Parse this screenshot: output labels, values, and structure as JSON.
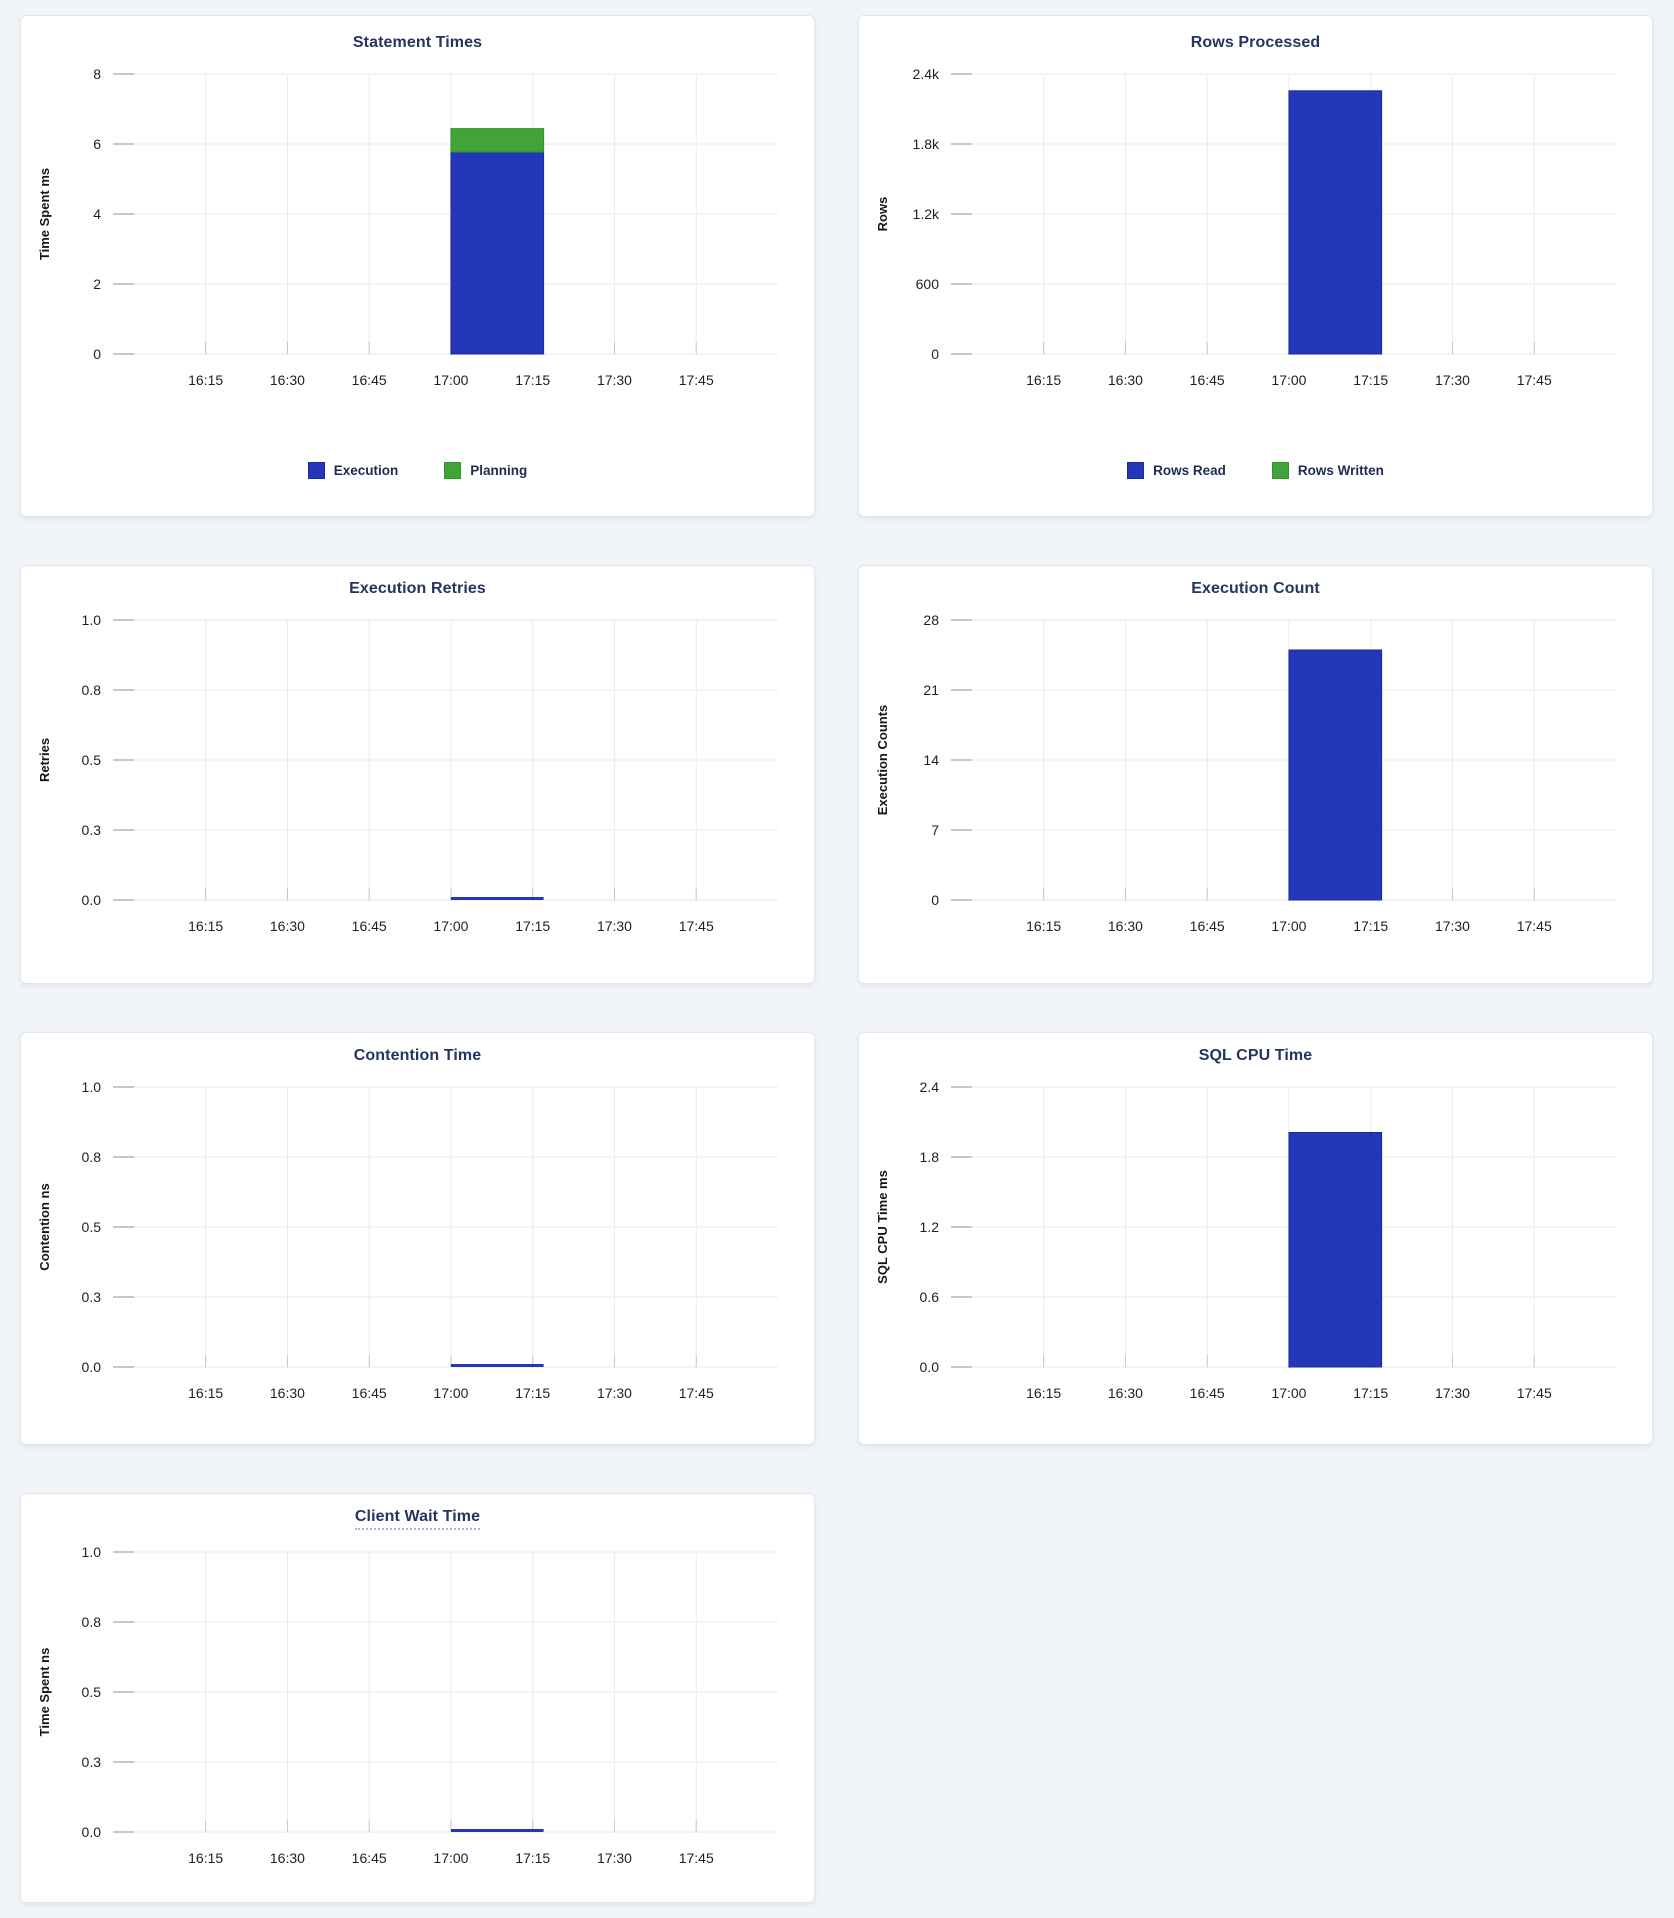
{
  "page": {
    "background": "#f1f4f8"
  },
  "colors": {
    "blue_fill": "#2337b8",
    "blue_stroke": "#1a2aa0",
    "green_fill": "#42a338",
    "green_stroke": "#339130",
    "title_text": "#25355e",
    "tick_text": "#1f1f1f",
    "gridline": "#e8e8e8",
    "vertical_gridline": "#e9ebee",
    "y_tick_stub": "#909090",
    "x_tick_stub": "#c4c8cc",
    "flatline": "#2337b8",
    "card_border": "#e2e6eb"
  },
  "x_axis": {
    "domain_start": "15:58",
    "domain_end": "18:00",
    "ticks": [
      "16:15",
      "16:30",
      "16:45",
      "17:00",
      "17:15",
      "17:30",
      "17:45"
    ]
  },
  "chart_data": [
    {
      "type": "bar",
      "title": "Statement Times",
      "ylabel": "Time Spent ms",
      "yticks": [
        "0",
        "2",
        "4",
        "6",
        "8"
      ],
      "ymax": 8,
      "stacked": true,
      "legend": true,
      "window": [
        "17:00",
        "17:17"
      ],
      "series": [
        {
          "name": "Execution",
          "color": "blue",
          "value": 5.77
        },
        {
          "name": "Planning",
          "color": "green",
          "value": 0.67
        }
      ]
    },
    {
      "type": "bar",
      "title": "Rows Processed",
      "ylabel": "Rows",
      "yticks": [
        "0",
        "600",
        "1.2k",
        "1.8k",
        "2.4k"
      ],
      "ymax": 2400,
      "stacked": true,
      "legend": true,
      "window": [
        "17:00",
        "17:17"
      ],
      "series": [
        {
          "name": "Rows Read",
          "color": "blue",
          "value": 2256
        },
        {
          "name": "Rows Written",
          "color": "green",
          "value": 0
        }
      ]
    },
    {
      "type": "line",
      "title": "Execution Retries",
      "ylabel": "Retries",
      "yticks": [
        "0.0",
        "0.3",
        "0.5",
        "0.8",
        "1.0"
      ],
      "ymax": 1,
      "flatline": true,
      "window": [
        "17:00",
        "17:17"
      ],
      "series": [
        {
          "name": "Retries",
          "color": "blue",
          "value": 0
        }
      ]
    },
    {
      "type": "bar",
      "title": "Execution Count",
      "ylabel": "Execution Counts",
      "yticks": [
        "0",
        "7",
        "14",
        "21",
        "28"
      ],
      "ymax": 28,
      "window": [
        "17:00",
        "17:17"
      ],
      "series": [
        {
          "name": "Execution Count",
          "color": "blue",
          "value": 25
        }
      ]
    },
    {
      "type": "line",
      "title": "Contention Time",
      "ylabel": "Contention ns",
      "yticks": [
        "0.0",
        "0.3",
        "0.5",
        "0.8",
        "1.0"
      ],
      "ymax": 1,
      "flatline": true,
      "window": [
        "17:00",
        "17:17"
      ],
      "series": [
        {
          "name": "Contention",
          "color": "blue",
          "value": 0
        }
      ]
    },
    {
      "type": "bar",
      "title": "SQL CPU Time",
      "ylabel": "SQL CPU Time ms",
      "yticks": [
        "0.0",
        "0.6",
        "1.2",
        "1.8",
        "2.4"
      ],
      "ymax": 2.4,
      "window": [
        "17:00",
        "17:17"
      ],
      "series": [
        {
          "name": "SQL CPU Time",
          "color": "blue",
          "value": 2.01
        }
      ]
    },
    {
      "type": "line",
      "title": "Client Wait Time",
      "ylabel": "Time Spent ns",
      "yticks": [
        "0.0",
        "0.3",
        "0.5",
        "0.8",
        "1.0"
      ],
      "ymax": 1,
      "flatline": true,
      "title_underline": true,
      "window": [
        "17:00",
        "17:17"
      ],
      "series": [
        {
          "name": "Client Wait Time",
          "color": "blue",
          "value": 0
        }
      ]
    }
  ]
}
